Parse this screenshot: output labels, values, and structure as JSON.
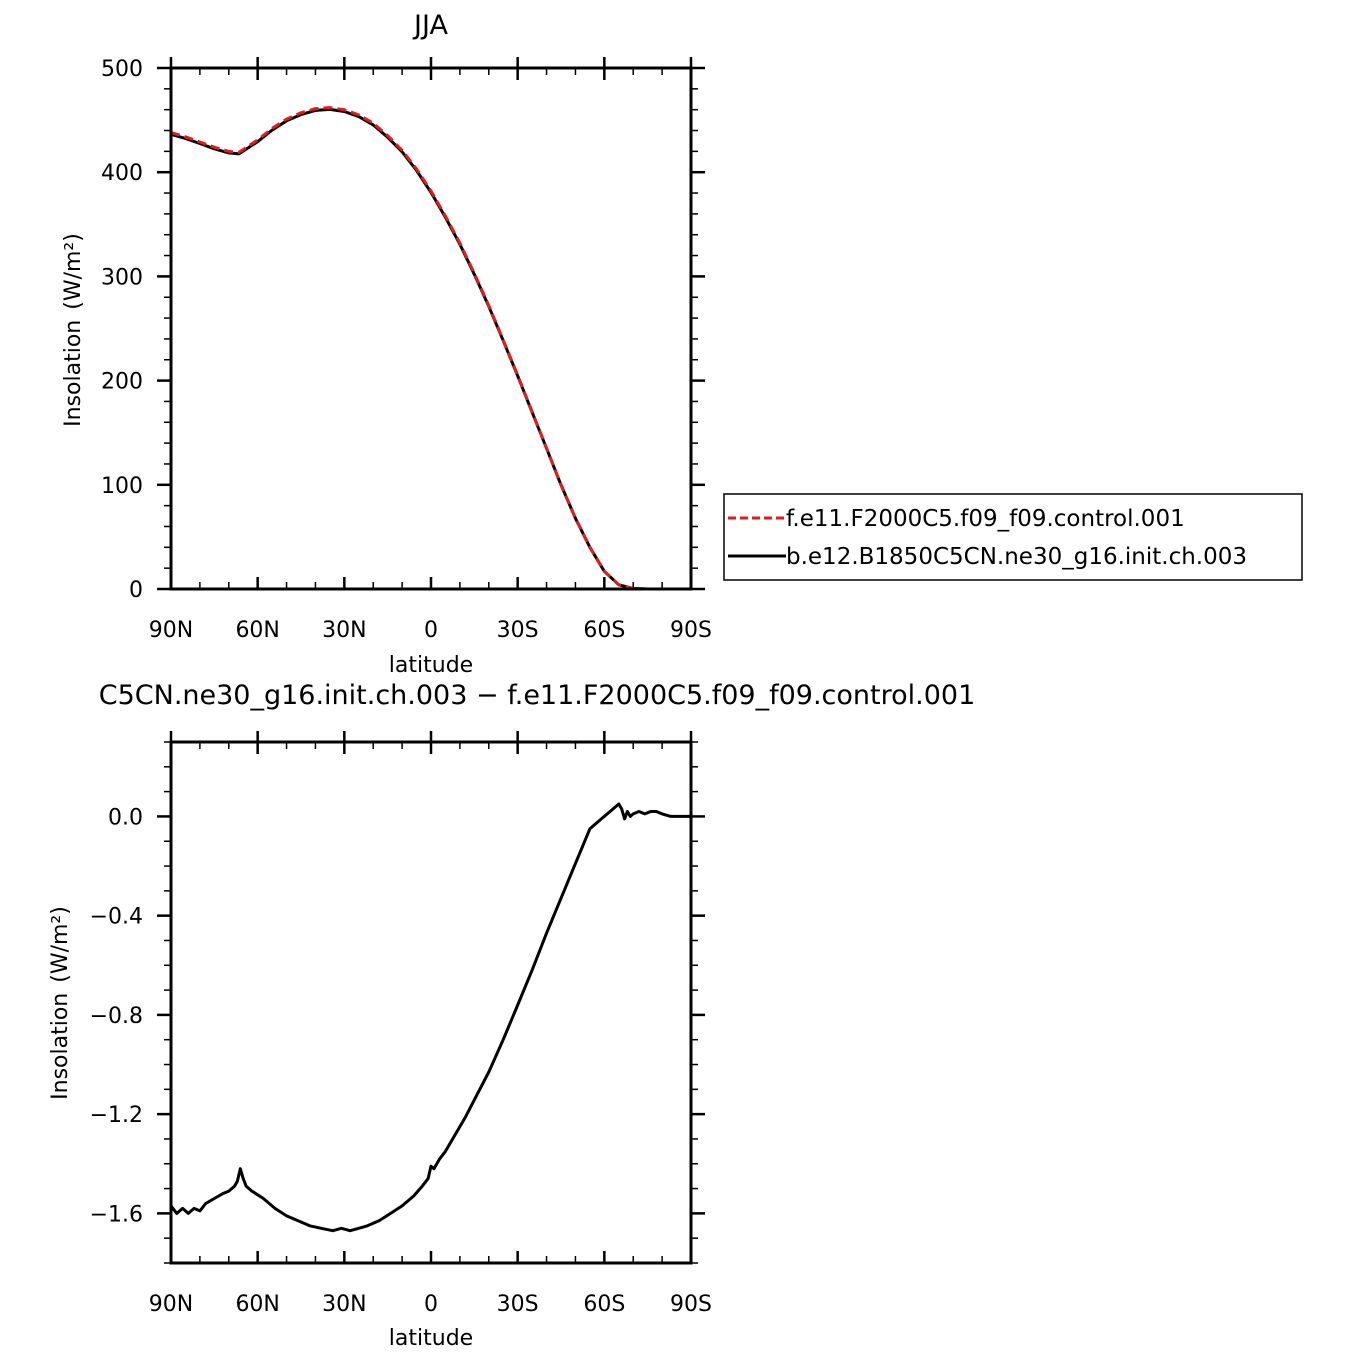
{
  "chart_data": [
    {
      "type": "line",
      "title": "JJA",
      "xlabel": "latitude",
      "ylabel": "Insolation",
      "ylabel_units": "(W/m²)",
      "x_domain": [
        90,
        -90
      ],
      "xticks": [
        90,
        60,
        30,
        0,
        -30,
        -60,
        -90
      ],
      "xtick_labels": [
        "90N",
        "60N",
        "30N",
        "0",
        "30S",
        "60S",
        "90S"
      ],
      "ylim": [
        0,
        500
      ],
      "yticks": [
        0,
        100,
        200,
        300,
        400,
        500
      ],
      "ytick_labels": [
        "0",
        "100",
        "200",
        "300",
        "400",
        "500"
      ],
      "legend_position": "right",
      "grid": false,
      "series": [
        {
          "name": "f.e11.F2000C5.f09_f09.control.001",
          "color": "#e41a1c",
          "dash": "dashed",
          "x": [
            90,
            85,
            80,
            75,
            70,
            66.5,
            60,
            55,
            50,
            45,
            40,
            35,
            30,
            25,
            20,
            15,
            10,
            5,
            0,
            -5,
            -10,
            -15,
            -20,
            -25,
            -30,
            -35,
            -40,
            -45,
            -50,
            -55,
            -60,
            -65,
            -70,
            -75,
            -80,
            -85,
            -90
          ],
          "y": [
            438,
            434,
            429,
            424,
            420,
            419,
            431,
            442,
            451,
            457,
            461,
            462,
            460,
            455,
            447,
            435,
            421,
            403,
            382,
            358,
            332,
            303,
            272,
            239,
            205,
            170,
            135,
            100,
            68,
            40,
            17,
            4,
            0.5,
            0,
            0,
            0,
            0
          ]
        },
        {
          "name": "b.e12.B1850C5CN.ne30_g16.init.ch.003",
          "color": "#000000",
          "dash": "solid",
          "x": [
            90,
            85,
            80,
            75,
            70,
            66.5,
            60,
            55,
            50,
            45,
            40,
            35,
            30,
            25,
            20,
            15,
            10,
            5,
            0,
            -5,
            -10,
            -15,
            -20,
            -25,
            -30,
            -35,
            -40,
            -45,
            -50,
            -55,
            -60,
            -65,
            -70,
            -75,
            -80,
            -85,
            -90
          ],
          "y": [
            436.4,
            432.4,
            427.5,
            422.5,
            418.5,
            417.6,
            429.4,
            440.4,
            449.3,
            455.3,
            459.3,
            460.3,
            458.3,
            453.4,
            445.4,
            433.5,
            419.6,
            401.6,
            380.6,
            356.7,
            330.8,
            302,
            271.2,
            238.4,
            204.5,
            169.7,
            134.8,
            99.9,
            67.9,
            40,
            17,
            4,
            0.5,
            0,
            0,
            0,
            0
          ]
        }
      ]
    },
    {
      "type": "line",
      "title": "C5CN.ne30_g16.init.ch.003 − f.e11.F2000C5.f09_f09.control.001",
      "xlabel": "latitude",
      "ylabel": "Insolation",
      "ylabel_units": "(W/m²)",
      "x_domain": [
        90,
        -90
      ],
      "xticks": [
        90,
        60,
        30,
        0,
        -30,
        -60,
        -90
      ],
      "xtick_labels": [
        "90N",
        "60N",
        "30N",
        "0",
        "30S",
        "60S",
        "90S"
      ],
      "ylim": [
        -1.8,
        0.3
      ],
      "yticks": [
        -1.6,
        -1.2,
        -0.8,
        -0.4,
        0.0
      ],
      "ytick_labels": [
        "−1.6",
        "−1.2",
        "−0.8",
        "−0.4",
        "0.0"
      ],
      "grid": false,
      "series": [
        {
          "color": "#000000",
          "dash": "solid",
          "x": [
            90,
            88,
            86,
            84,
            82,
            80,
            78,
            75,
            72,
            70,
            68,
            67,
            66,
            65,
            64,
            62,
            58,
            54,
            50,
            46,
            42,
            38,
            34,
            31,
            28,
            25,
            22,
            18,
            14,
            10,
            6,
            3,
            1,
            0,
            -1,
            -3,
            -5,
            -8,
            -12,
            -16,
            -20,
            -25,
            -30,
            -35,
            -40,
            -45,
            -50,
            -55,
            -60,
            -63,
            -65,
            -66,
            -67,
            -68,
            -69,
            -70,
            -72,
            -74,
            -76,
            -78,
            -80,
            -83,
            -86,
            -90
          ],
          "y": [
            -1.57,
            -1.6,
            -1.58,
            -1.6,
            -1.58,
            -1.59,
            -1.56,
            -1.54,
            -1.52,
            -1.51,
            -1.49,
            -1.47,
            -1.42,
            -1.46,
            -1.49,
            -1.51,
            -1.54,
            -1.58,
            -1.61,
            -1.63,
            -1.65,
            -1.66,
            -1.67,
            -1.66,
            -1.67,
            -1.66,
            -1.65,
            -1.63,
            -1.6,
            -1.57,
            -1.53,
            -1.49,
            -1.46,
            -1.41,
            -1.42,
            -1.38,
            -1.35,
            -1.29,
            -1.21,
            -1.12,
            -1.03,
            -0.9,
            -0.76,
            -0.62,
            -0.47,
            -0.33,
            -0.19,
            -0.05,
            0.0,
            0.03,
            0.05,
            0.03,
            -0.01,
            0.02,
            0.0,
            0.01,
            0.02,
            0.01,
            0.02,
            0.02,
            0.01,
            0.0,
            0.0,
            0.0
          ]
        }
      ]
    }
  ]
}
